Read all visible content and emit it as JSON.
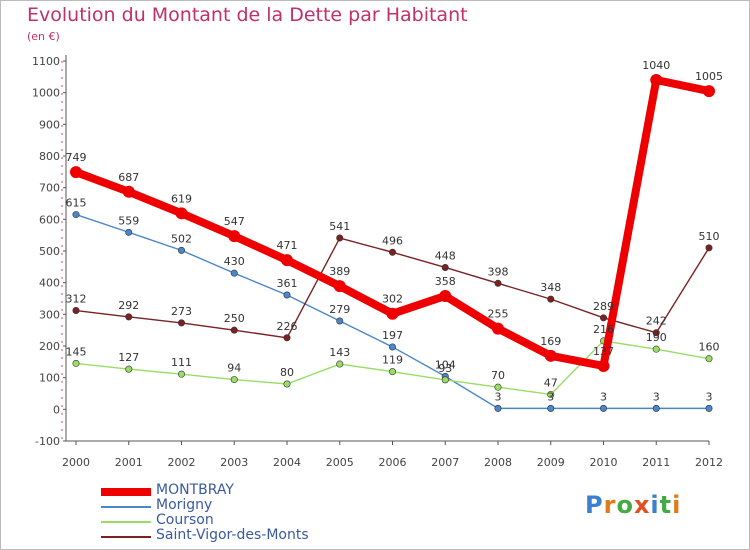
{
  "title": "Evolution du Montant de la Dette par Habitant",
  "subtitle": "(en €)",
  "logo_text": "Proxiti",
  "chart_data": {
    "type": "line",
    "title": "Evolution du Montant de la Dette par Habitant",
    "subtitle": "(en €)",
    "x": [
      "2000",
      "2001",
      "2002",
      "2003",
      "2004",
      "2005",
      "2006",
      "2007",
      "2008",
      "2009",
      "2010",
      "2011",
      "2012"
    ],
    "ylim": [
      -100,
      1100
    ],
    "yticks": [
      -100,
      0,
      100,
      200,
      300,
      400,
      500,
      600,
      700,
      800,
      900,
      1000,
      1100
    ],
    "grid": false,
    "legend_position": "bottom-left",
    "series": [
      {
        "name": "MONTBRAY",
        "color": "#ee0000",
        "weight": "heavy",
        "values": [
          749,
          687,
          619,
          547,
          471,
          389,
          302,
          358,
          255,
          169,
          137,
          1040,
          1005
        ]
      },
      {
        "name": "Morigny",
        "color": "#4a86c8",
        "weight": "thin",
        "values": [
          615,
          559,
          502,
          430,
          361,
          279,
          197,
          104,
          3,
          3,
          3,
          3,
          3
        ]
      },
      {
        "name": "Courson",
        "color": "#99dd66",
        "weight": "thin",
        "values": [
          145,
          127,
          111,
          94,
          80,
          143,
          119,
          93,
          70,
          47,
          216,
          190,
          160
        ]
      },
      {
        "name": "Saint-Vigor-des-Monts",
        "color": "#7a2222",
        "weight": "thin",
        "values": [
          312,
          292,
          273,
          250,
          226,
          541,
          496,
          448,
          398,
          348,
          289,
          242,
          510
        ]
      }
    ],
    "data_labels": [
      {
        "series": "MONTBRAY",
        "labels": [
          "749",
          "687",
          "619",
          "547",
          "471",
          "389",
          "302",
          "358",
          "255",
          "169",
          "137",
          "1040",
          "1005"
        ]
      },
      {
        "series": "Morigny",
        "labels": [
          "615",
          "559",
          "502",
          "430",
          "361",
          "279",
          "197",
          "104",
          "3",
          "3",
          "3",
          "3",
          "3"
        ]
      },
      {
        "series": "Courson",
        "labels": [
          "145",
          "127",
          "111",
          "94",
          "80",
          "143",
          "119",
          "93",
          "70",
          "47",
          "216",
          "190",
          "160"
        ]
      },
      {
        "series": "Saint-Vigor-des-Monts",
        "labels": [
          "312",
          "292",
          "273",
          "250",
          "226",
          "541",
          "496",
          "448",
          "398",
          "348",
          "289",
          "242",
          "510"
        ]
      }
    ]
  }
}
